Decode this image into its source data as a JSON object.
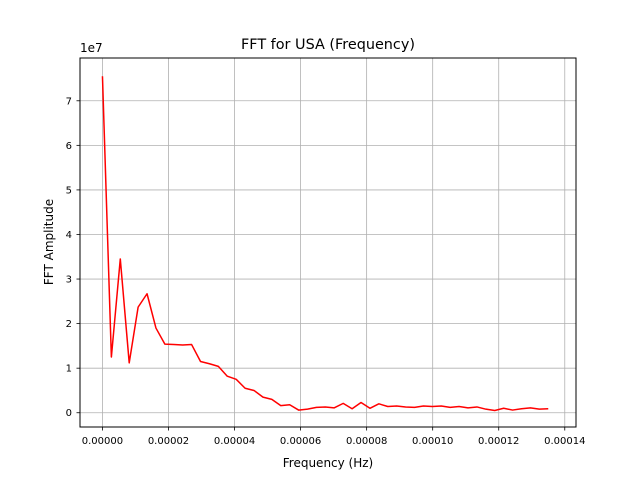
{
  "chart_data": {
    "type": "line",
    "title": "FFT for USA (Frequency)",
    "xlabel": "Frequency (Hz)",
    "ylabel": "FFT Amplitude",
    "y_offset_label": "1e7",
    "xlim": [
      -6.8e-06,
      0.0001434
    ],
    "ylim": [
      -0.32,
      7.96
    ],
    "x_ticks": [
      0,
      2e-05,
      4e-05,
      6e-05,
      8e-05,
      0.0001,
      0.00012,
      0.00014
    ],
    "x_tick_labels": [
      "0.00000",
      "0.00002",
      "0.00004",
      "0.00006",
      "0.00008",
      "0.00010",
      "0.00012",
      "0.00014"
    ],
    "y_ticks": [
      0,
      1,
      2,
      3,
      4,
      5,
      6,
      7
    ],
    "y_tick_labels": [
      "0",
      "1",
      "2",
      "3",
      "4",
      "5",
      "6",
      "7"
    ],
    "grid": true,
    "line_color": "#ff0000",
    "x": [
      0.0,
      2.7e-06,
      5.4e-06,
      8.1e-06,
      1.08e-05,
      1.35e-05,
      1.62e-05,
      1.89e-05,
      2.16e-05,
      2.43e-05,
      2.7e-05,
      2.97e-05,
      3.24e-05,
      3.51e-05,
      3.78e-05,
      4.05e-05,
      4.32e-05,
      4.59e-05,
      4.86e-05,
      5.13e-05,
      5.4e-05,
      5.67e-05,
      5.94e-05,
      6.21e-05,
      6.48e-05,
      6.75e-05,
      7.02e-05,
      7.29e-05,
      7.56e-05,
      7.83e-05,
      8.1e-05,
      8.37e-05,
      8.64e-05,
      8.91e-05,
      9.18e-05,
      9.45e-05,
      9.72e-05,
      9.99e-05,
      0.0001026,
      0.0001053,
      0.000108,
      0.0001107,
      0.0001134,
      0.0001161,
      0.0001188,
      0.0001215,
      0.0001242,
      0.0001269,
      0.0001296,
      0.0001323,
      0.000135
    ],
    "values": [
      7.55,
      1.25,
      3.45,
      1.12,
      2.37,
      2.67,
      1.9,
      1.54,
      1.53,
      1.52,
      1.53,
      1.15,
      1.1,
      1.04,
      0.82,
      0.75,
      0.55,
      0.5,
      0.35,
      0.3,
      0.16,
      0.18,
      0.06,
      0.08,
      0.12,
      0.13,
      0.11,
      0.21,
      0.09,
      0.23,
      0.1,
      0.2,
      0.14,
      0.15,
      0.13,
      0.12,
      0.15,
      0.14,
      0.15,
      0.12,
      0.14,
      0.11,
      0.13,
      0.08,
      0.05,
      0.1,
      0.06,
      0.09,
      0.11,
      0.08,
      0.09
    ]
  }
}
